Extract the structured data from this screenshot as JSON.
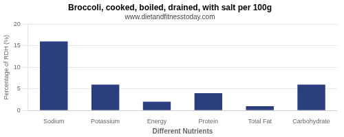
{
  "chart_data": {
    "type": "bar",
    "title": "Broccoli, cooked, boiled, drained, with salt per 100g",
    "subtitle": "www.dietandfitnesstoday.com",
    "xlabel": "Different Nutrients",
    "ylabel": "Percentage of RDH (%)",
    "categories": [
      "Sodium",
      "Potassium",
      "Energy",
      "Protein",
      "Total Fat",
      "Carbohydrate"
    ],
    "values": [
      16,
      6,
      2,
      4,
      1,
      6
    ],
    "color": "#2b3f7e",
    "ylim": [
      0,
      20
    ],
    "yticks": [
      0,
      5,
      10,
      15,
      20
    ],
    "grid": true
  }
}
